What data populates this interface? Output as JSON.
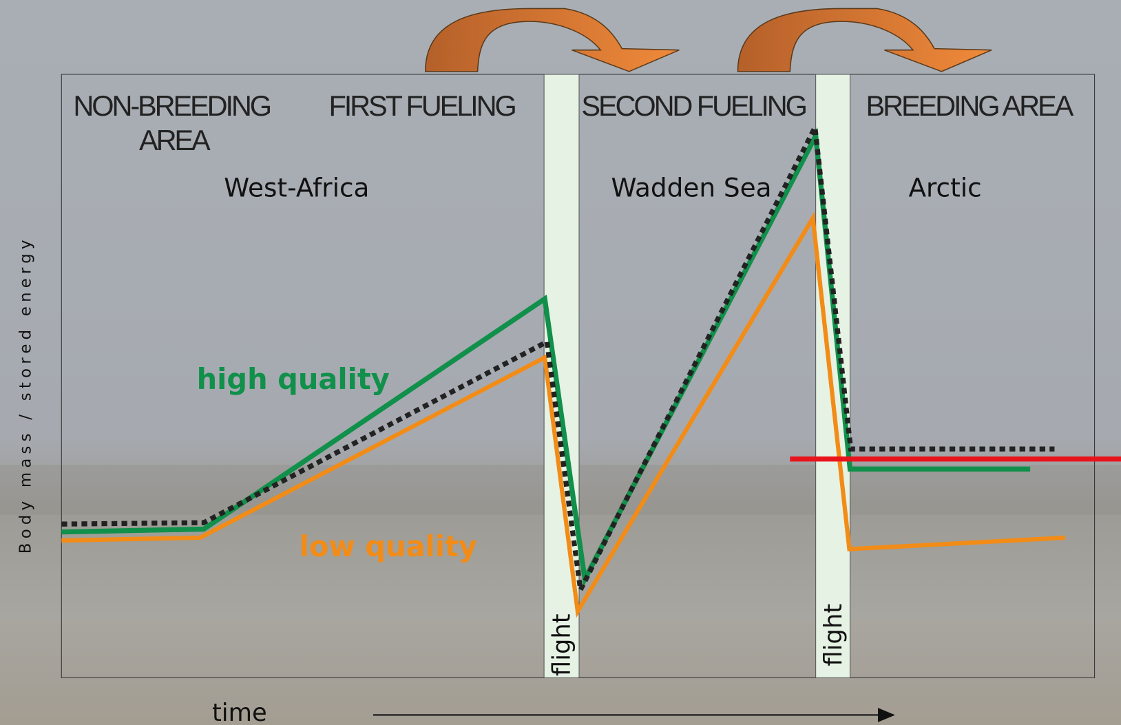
{
  "header": {
    "zones": [
      "NON-BREEDING",
      "AREA",
      "FIRST FUELING",
      "SECOND FUELING",
      "BREEDING AREA"
    ],
    "regions": [
      "West-Africa",
      "Wadden Sea",
      "Arctic"
    ],
    "flights": [
      "flight",
      "flight"
    ]
  },
  "legend": {
    "high": "high quality",
    "low": "low quality"
  },
  "axes": {
    "y_label": "Body mass / stored energy",
    "x_label": "time"
  }
}
